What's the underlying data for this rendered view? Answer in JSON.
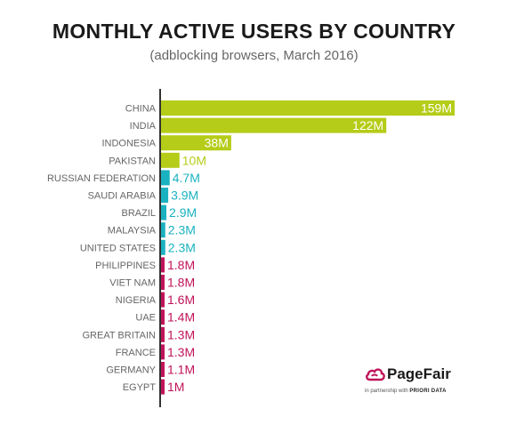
{
  "chart_data": {
    "type": "bar",
    "orientation": "horizontal",
    "title": "MONTHLY ACTIVE USERS BY COUNTRY",
    "subtitle": "(adblocking browsers, March 2016)",
    "categories": [
      "CHINA",
      "INDIA",
      "INDONESIA",
      "PAKISTAN",
      "RUSSIAN FEDERATION",
      "SAUDI ARABIA",
      "BRAZIL",
      "MALAYSIA",
      "UNITED STATES",
      "PHILIPPINES",
      "VIET NAM",
      "NIGERIA",
      "UAE",
      "GREAT BRITAIN",
      "FRANCE",
      "GERMANY",
      "EGYPT"
    ],
    "values": [
      159,
      122,
      38,
      10,
      4.7,
      3.9,
      2.9,
      2.3,
      2.3,
      1.8,
      1.8,
      1.6,
      1.4,
      1.3,
      1.3,
      1.1,
      1
    ],
    "value_labels": [
      "159M",
      "122M",
      "38M",
      "10M",
      "4.7M",
      "3.9M",
      "2.9M",
      "2.3M",
      "2.3M",
      "1.8M",
      "1.8M",
      "1.6M",
      "1.4M",
      "1.3M",
      "1.3M",
      "1.1M",
      "1M"
    ],
    "unit": "M",
    "xlim": [
      0,
      159
    ],
    "xlabel": "",
    "ylabel": "",
    "grid": false,
    "legend": "none",
    "colors": {
      "tier1": "#b5cc18",
      "tier2": "#1ab2c0",
      "tier3": "#c0145a",
      "label_text": "#666666",
      "axis": "#333333"
    },
    "color_tiers": [
      "tier1",
      "tier1",
      "tier1",
      "tier1",
      "tier2",
      "tier2",
      "tier2",
      "tier2",
      "tier2",
      "tier3",
      "tier3",
      "tier3",
      "tier3",
      "tier3",
      "tier3",
      "tier3",
      "tier3"
    ]
  },
  "logo": {
    "icon": "pagefair-cloud-icon",
    "name": "PageFair",
    "partner_prefix": "in partnership with",
    "partner_name": "PRIORI DATA"
  }
}
